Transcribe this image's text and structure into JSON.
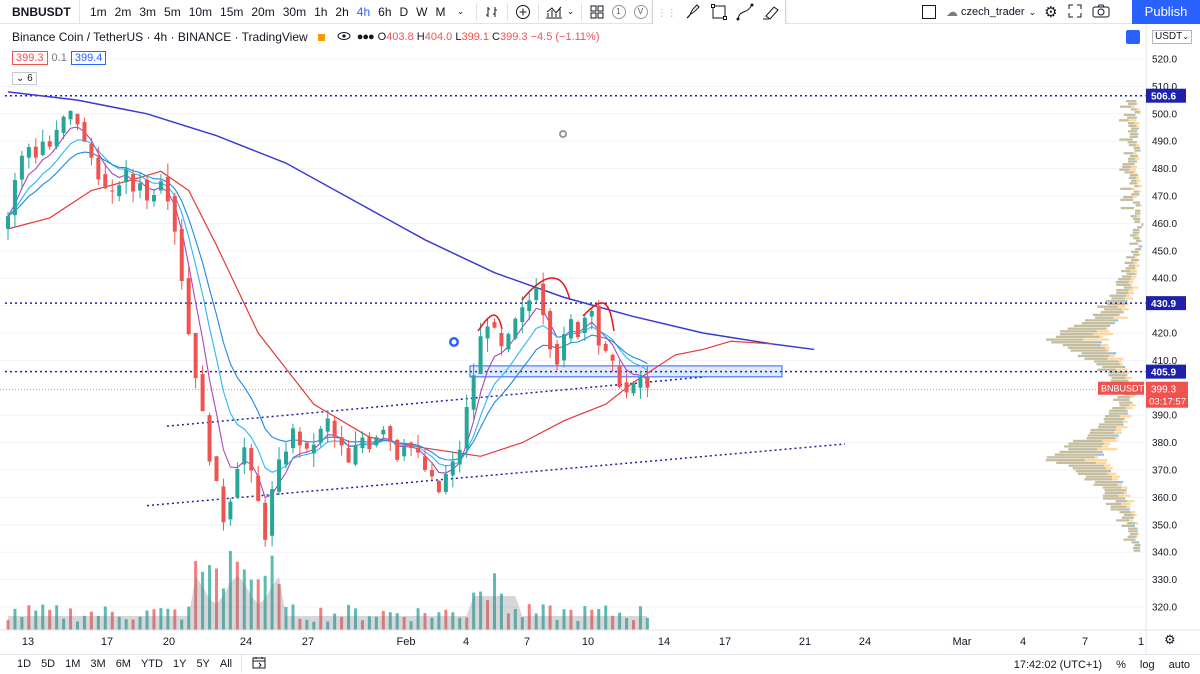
{
  "toolbar": {
    "symbol": "BNBUSDT",
    "timeframes": [
      "1m",
      "2m",
      "3m",
      "5m",
      "10m",
      "15m",
      "20m",
      "30m",
      "1h",
      "2h",
      "4h",
      "6h",
      "D",
      "W",
      "M"
    ],
    "active_timeframe": "4h",
    "compare_badge": "1",
    "v_badge": "V",
    "username": "czech_trader",
    "publish_label": "Publish",
    "icons": [
      "chevron-down-icon",
      "bar-style-icon",
      "add-plus-icon",
      "indicators-icon",
      "templates-icon",
      "alert-icon",
      "replay-icon",
      "drag-handle-icon",
      "brush-icon",
      "rectangle-icon",
      "curve-icon",
      "highlighter-icon",
      "fullscreen-icon",
      "settings-gear-icon",
      "camera-icon"
    ]
  },
  "legend": {
    "title": "Binance Coin / TetherUS · 4h · BINANCE · TradingView",
    "o_label": "O",
    "o": "403.8",
    "h_label": "H",
    "h": "404.0",
    "l_label": "L",
    "l": "399.1",
    "c_label": "C",
    "c": "399.3",
    "change": "−4.5 (−1.11%)",
    "ind_value_1": "399.3",
    "ind_step": "0.1",
    "ind_value_2": "399.4",
    "collapse_count": "6"
  },
  "price_axis": {
    "currency": "USDT",
    "ticks": [
      "520.0",
      "510.0",
      "500.0",
      "490.0",
      "480.0",
      "470.0",
      "460.0",
      "450.0",
      "440.0",
      "430.0",
      "420.0",
      "410.0",
      "390.0",
      "380.0",
      "370.0",
      "360.0",
      "350.0",
      "340.0",
      "330.0",
      "320.0"
    ],
    "labels": [
      {
        "value": "506.6",
        "color": "#1e22aa"
      },
      {
        "value": "430.9",
        "color": "#1e22aa"
      },
      {
        "value": "405.9",
        "color": "#1e22aa"
      }
    ],
    "symbol_tag": "BNBUSDT",
    "last_price": "399.3",
    "countdown": "03:17:57",
    "last_color": "#ef5350"
  },
  "time_axis": {
    "ticks": [
      "13",
      "17",
      "20",
      "24",
      "27",
      "Feb",
      "4",
      "7",
      "10",
      "14",
      "17",
      "21",
      "24",
      "Mar",
      "4",
      "7",
      "1"
    ]
  },
  "bottom": {
    "ranges": [
      "1D",
      "5D",
      "1M",
      "3M",
      "6M",
      "YTD",
      "1Y",
      "5Y",
      "All"
    ],
    "clock": "17:42:02 (UTC+1)",
    "percent": "%",
    "log": "log",
    "auto": "auto"
  },
  "chart_data": {
    "type": "candlestick",
    "ylim": [
      315,
      525
    ],
    "up_color": "#26a69a",
    "down_color": "#ef5350",
    "horizontal_levels": [
      506.6,
      430.9,
      405.9
    ],
    "zone": [
      404,
      408
    ],
    "price_path": [
      [
        0,
        458
      ],
      [
        1,
        463
      ],
      [
        2,
        476
      ],
      [
        3,
        484
      ],
      [
        4,
        488
      ],
      [
        5,
        485
      ],
      [
        6,
        490
      ],
      [
        7,
        488
      ],
      [
        8,
        493
      ],
      [
        9,
        498
      ],
      [
        10,
        500
      ],
      [
        11,
        497
      ],
      [
        12,
        489
      ],
      [
        13,
        484
      ],
      [
        14,
        478
      ],
      [
        15,
        472
      ],
      [
        16,
        470
      ],
      [
        17,
        475
      ],
      [
        18,
        478
      ],
      [
        19,
        472
      ],
      [
        20,
        476
      ],
      [
        21,
        468
      ],
      [
        22,
        472
      ],
      [
        23,
        477
      ],
      [
        24,
        470
      ],
      [
        25,
        458
      ],
      [
        26,
        440
      ],
      [
        27,
        420
      ],
      [
        28,
        405
      ],
      [
        29,
        390
      ],
      [
        30,
        375
      ],
      [
        31,
        364
      ],
      [
        32,
        352
      ],
      [
        33,
        360
      ],
      [
        34,
        372
      ],
      [
        35,
        378
      ],
      [
        36,
        368
      ],
      [
        37,
        358
      ],
      [
        38,
        346
      ],
      [
        39,
        362
      ],
      [
        40,
        372
      ],
      [
        41,
        378
      ],
      [
        42,
        384
      ],
      [
        43,
        380
      ],
      [
        44,
        376
      ],
      [
        45,
        380
      ],
      [
        46,
        384
      ],
      [
        47,
        388
      ],
      [
        48,
        382
      ],
      [
        49,
        378
      ],
      [
        50,
        372
      ],
      [
        51,
        378
      ],
      [
        52,
        382
      ],
      [
        53,
        379
      ],
      [
        54,
        383
      ],
      [
        55,
        386
      ],
      [
        56,
        381
      ],
      [
        57,
        375
      ],
      [
        58,
        380
      ],
      [
        59,
        378
      ],
      [
        60,
        375
      ],
      [
        61,
        370
      ],
      [
        62,
        366
      ],
      [
        63,
        362
      ],
      [
        64,
        368
      ],
      [
        65,
        372
      ],
      [
        66,
        378
      ],
      [
        67,
        392
      ],
      [
        68,
        405
      ],
      [
        69,
        418
      ],
      [
        70,
        424
      ],
      [
        71,
        420
      ],
      [
        72,
        414
      ],
      [
        73,
        418
      ],
      [
        74,
        424
      ],
      [
        75,
        428
      ],
      [
        76,
        432
      ],
      [
        77,
        438
      ],
      [
        78,
        428
      ],
      [
        79,
        416
      ],
      [
        80,
        410
      ],
      [
        81,
        418
      ],
      [
        82,
        424
      ],
      [
        83,
        420
      ],
      [
        84,
        426
      ],
      [
        85,
        430
      ],
      [
        86,
        416
      ],
      [
        87,
        412
      ],
      [
        88,
        408
      ],
      [
        89,
        402
      ],
      [
        90,
        398
      ],
      [
        91,
        400
      ],
      [
        92,
        404
      ],
      [
        93,
        399
      ]
    ],
    "ema_blue_200": [
      [
        0,
        508
      ],
      [
        10,
        505
      ],
      [
        20,
        500
      ],
      [
        30,
        492
      ],
      [
        40,
        482
      ],
      [
        50,
        468
      ],
      [
        60,
        454
      ],
      [
        70,
        442
      ],
      [
        80,
        433
      ],
      [
        90,
        426
      ],
      [
        100,
        420
      ],
      [
        110,
        416
      ],
      [
        116,
        414
      ]
    ],
    "ma_red": [
      [
        0,
        458
      ],
      [
        6,
        462
      ],
      [
        12,
        472
      ],
      [
        18,
        476
      ],
      [
        22,
        479
      ],
      [
        26,
        472
      ],
      [
        30,
        452
      ],
      [
        36,
        420
      ],
      [
        44,
        394
      ],
      [
        52,
        382
      ],
      [
        60,
        378
      ],
      [
        68,
        375
      ],
      [
        74,
        380
      ],
      [
        80,
        388
      ],
      [
        86,
        394
      ],
      [
        90,
        402
      ],
      [
        96,
        412
      ],
      [
        100,
        414
      ],
      [
        104,
        417
      ],
      [
        110,
        416
      ]
    ],
    "volume_note": "volume histogram at bottom"
  }
}
